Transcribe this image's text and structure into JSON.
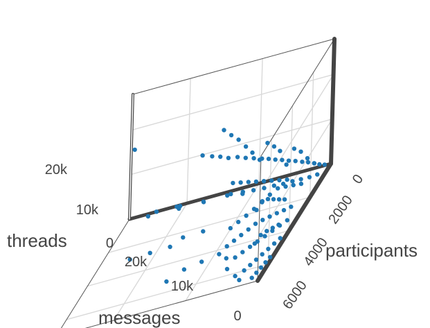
{
  "chart_data": {
    "type": "scatter3d",
    "title": "",
    "axes": {
      "x": {
        "title": "messages",
        "range": [
          0,
          28000
        ],
        "ticks": [
          0,
          10000,
          20000
        ],
        "tick_labels": [
          "0",
          "10k",
          "20k"
        ]
      },
      "y": {
        "title": "participants",
        "range": [
          0,
          7000
        ],
        "ticks": [
          0,
          2000,
          4000,
          6000
        ],
        "tick_labels": [
          "0",
          "2000",
          "4000",
          "6000"
        ]
      },
      "z": {
        "title": "threads",
        "range": [
          0,
          28000
        ],
        "ticks": [
          0,
          10000,
          20000
        ],
        "tick_labels": [
          "0",
          "10k",
          "20k"
        ]
      }
    },
    "grid": true,
    "marker_color": "#1f77b4",
    "series": [
      {
        "points": [
          [
            600,
            200,
            800
          ],
          [
            1200,
            300,
            1500
          ],
          [
            1800,
            400,
            2400
          ],
          [
            2500,
            500,
            3300
          ],
          [
            3200,
            600,
            4100
          ],
          [
            4000,
            700,
            5000
          ],
          [
            4800,
            800,
            5800
          ],
          [
            5600,
            900,
            6700
          ],
          [
            6400,
            1000,
            7500
          ],
          [
            7200,
            1100,
            8400
          ],
          [
            8000,
            1200,
            9200
          ],
          [
            9000,
            1300,
            10100
          ],
          [
            10000,
            1400,
            11000
          ],
          [
            11000,
            1500,
            12000
          ],
          [
            12000,
            1700,
            13000
          ],
          [
            13000,
            1800,
            14100
          ],
          [
            14000,
            1900,
            15000
          ],
          [
            15200,
            2000,
            16100
          ],
          [
            900,
            700,
            600
          ],
          [
            1700,
            900,
            1100
          ],
          [
            2600,
            1100,
            1800
          ],
          [
            3500,
            1300,
            2500
          ],
          [
            4500,
            1500,
            3100
          ],
          [
            5500,
            1700,
            3900
          ],
          [
            6600,
            1900,
            4600
          ],
          [
            7800,
            2100,
            5400
          ],
          [
            9000,
            2300,
            6300
          ],
          [
            10400,
            2500,
            7200
          ],
          [
            1500,
            600,
            3000
          ],
          [
            2200,
            800,
            5200
          ],
          [
            3000,
            900,
            7400
          ],
          [
            3800,
            1000,
            8800
          ],
          [
            4700,
            1100,
            6000
          ],
          [
            5500,
            1200,
            9800
          ],
          [
            6200,
            1300,
            11500
          ],
          [
            7000,
            1400,
            13000
          ],
          [
            7900,
            1500,
            10000
          ],
          [
            8800,
            1600,
            12400
          ],
          [
            9600,
            1700,
            14500
          ],
          [
            10500,
            1800,
            16800
          ],
          [
            11400,
            1900,
            18600
          ],
          [
            12300,
            2000,
            20500
          ],
          [
            2000,
            1500,
            2000
          ],
          [
            2800,
            1700,
            2800
          ],
          [
            3600,
            1900,
            3600
          ],
          [
            4400,
            2100,
            4300
          ],
          [
            5200,
            2300,
            4000
          ],
          [
            6000,
            2500,
            3400
          ],
          [
            6800,
            2700,
            3000
          ],
          [
            7600,
            2900,
            2600
          ],
          [
            8400,
            3100,
            2300
          ],
          [
            9200,
            3300,
            2000
          ],
          [
            3000,
            2200,
            6000
          ],
          [
            3800,
            2400,
            7000
          ],
          [
            4600,
            2600,
            8000
          ],
          [
            5400,
            2800,
            9000
          ],
          [
            6200,
            3000,
            10000
          ],
          [
            7000,
            3200,
            11000
          ],
          [
            7800,
            3400,
            12000
          ],
          [
            8600,
            3600,
            13000
          ],
          [
            1500,
            2800,
            1500
          ],
          [
            2200,
            3000,
            1800
          ],
          [
            2900,
            3200,
            2200
          ],
          [
            3600,
            3400,
            2500
          ],
          [
            4300,
            3600,
            2800
          ],
          [
            5000,
            3800,
            3000
          ],
          [
            5700,
            4000,
            2800
          ],
          [
            6400,
            4200,
            2600
          ],
          [
            7100,
            4400,
            2400
          ],
          [
            7800,
            4600,
            2200
          ],
          [
            1000,
            3500,
            900
          ],
          [
            1600,
            3800,
            1100
          ],
          [
            2200,
            4100,
            1300
          ],
          [
            2800,
            4400,
            1500
          ],
          [
            3400,
            4700,
            1700
          ],
          [
            4000,
            5000,
            1900
          ],
          [
            4600,
            5300,
            2100
          ],
          [
            5200,
            5600,
            2300
          ],
          [
            500,
            4500,
            400
          ],
          [
            900,
            4800,
            500
          ],
          [
            1300,
            5100,
            600
          ],
          [
            1700,
            5400,
            700
          ],
          [
            2100,
            5700,
            800
          ],
          [
            2500,
            6000,
            900
          ],
          [
            2900,
            6300,
            1000
          ],
          [
            300,
            5600,
            200
          ],
          [
            500,
            5900,
            250
          ],
          [
            700,
            6200,
            300
          ],
          [
            900,
            6500,
            350
          ],
          [
            1100,
            6800,
            400
          ],
          [
            2000,
            3100,
            4500
          ],
          [
            2500,
            3300,
            5500
          ],
          [
            3000,
            3500,
            6500
          ],
          [
            3500,
            3700,
            7500
          ],
          [
            4000,
            3900,
            8000
          ],
          [
            4500,
            4100,
            7000
          ],
          [
            1200,
            4200,
            2600
          ],
          [
            1600,
            4500,
            3200
          ],
          [
            2000,
            4800,
            3800
          ],
          [
            2400,
            5100,
            4200
          ],
          [
            2800,
            5400,
            3600
          ],
          [
            11000,
            900,
            1500
          ],
          [
            13000,
            1000,
            2400
          ],
          [
            16000,
            1200,
            3000
          ],
          [
            19000,
            1400,
            4200
          ],
          [
            22000,
            1600,
            5000
          ],
          [
            17000,
            500,
            900
          ],
          [
            20000,
            800,
            1800
          ],
          [
            24000,
            1000,
            2600
          ],
          [
            14000,
            2600,
            800
          ],
          [
            16500,
            2800,
            1300
          ],
          [
            18000,
            3000,
            600
          ],
          [
            20500,
            3200,
            1100
          ],
          [
            23000,
            3400,
            1500
          ],
          [
            9000,
            4500,
            600
          ],
          [
            11000,
            4800,
            900
          ],
          [
            13000,
            5100,
            1200
          ],
          [
            15000,
            5400,
            500
          ],
          [
            25000,
            1800,
            21000
          ],
          [
            21000,
            300,
            800
          ],
          [
            7000,
            5200,
            1400
          ],
          [
            6000,
            5800,
            800
          ],
          [
            4000,
            6400,
            600
          ],
          [
            3000,
            6700,
            400
          ]
        ]
      }
    ]
  }
}
